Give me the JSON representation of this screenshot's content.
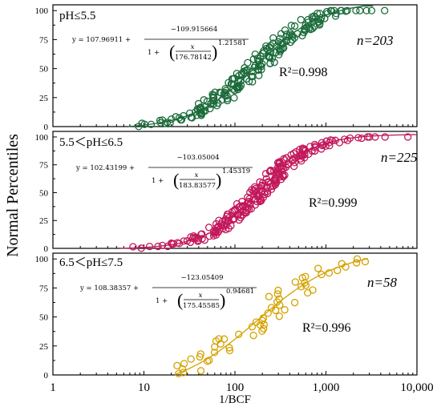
{
  "chart_data": {
    "type": "scatter",
    "xlabel": "1/BCF",
    "ylabel": "Normal Percentiles",
    "xscale": "log",
    "xlim": [
      1,
      10000
    ],
    "xticks": [
      1,
      10,
      100,
      1000,
      10000
    ],
    "xtick_labels": [
      "1",
      "10",
      "100",
      "1,000",
      "10,000"
    ],
    "ylim": [
      0,
      105
    ],
    "yticks": [
      0,
      25,
      50,
      75,
      100
    ],
    "ytick_labels": [
      "0",
      "25",
      "50",
      "75",
      "100"
    ],
    "grid": false,
    "panels": [
      {
        "label": "pH≤5.5",
        "n_label": "n=203",
        "r2_label": "R²=0.998",
        "equation": {
          "lhs": "y = 107.96911 +",
          "numerator": "−109.915664",
          "denominator_pre": "1 +",
          "x_over": "x",
          "x_under": "176.78142",
          "exponent": "1.21581"
        },
        "color": "#1b6b3a",
        "fit": {
          "A2": 107.96911,
          "A1": -1.946554,
          "x0": 176.78142,
          "p": 1.21581
        },
        "points": {
          "n": 203,
          "x_min": 3.5,
          "x_max": 3300,
          "spread": 0.015
        }
      },
      {
        "label": "5.5＜pH≤6.5",
        "n_label": "n=225",
        "r2_label": "R²=0.999",
        "equation": {
          "lhs": "y = 102.43199 +",
          "numerator": "−103.05004",
          "denominator_pre": "1 +",
          "x_over": "x",
          "x_under": "183.83577",
          "exponent": "1.45319"
        },
        "color": "#c2185b",
        "fit": {
          "A2": 102.43199,
          "A1": -0.61805,
          "x0": 183.83577,
          "p": 1.45319
        },
        "points": {
          "n": 225,
          "x_min": 3.1,
          "x_max": 9600,
          "spread": 0.012
        }
      },
      {
        "label": "6.5＜pH≤7.5",
        "n_label": "n=58",
        "r2_label": "R²=0.996",
        "equation": {
          "lhs": "y = 108.38357 +",
          "numerator": "−123.05409",
          "denominator_pre": "1 +",
          "x_over": "x",
          "x_under": "175.45585",
          "exponent": "0.94681"
        },
        "color": "#d4a200",
        "fit": {
          "A2": 108.38357,
          "A1": -14.67052,
          "x0": 175.45585,
          "p": 0.94681
        },
        "points": {
          "n": 58,
          "x_min": 19,
          "x_max": 2900,
          "spread": 0.02
        }
      }
    ]
  }
}
